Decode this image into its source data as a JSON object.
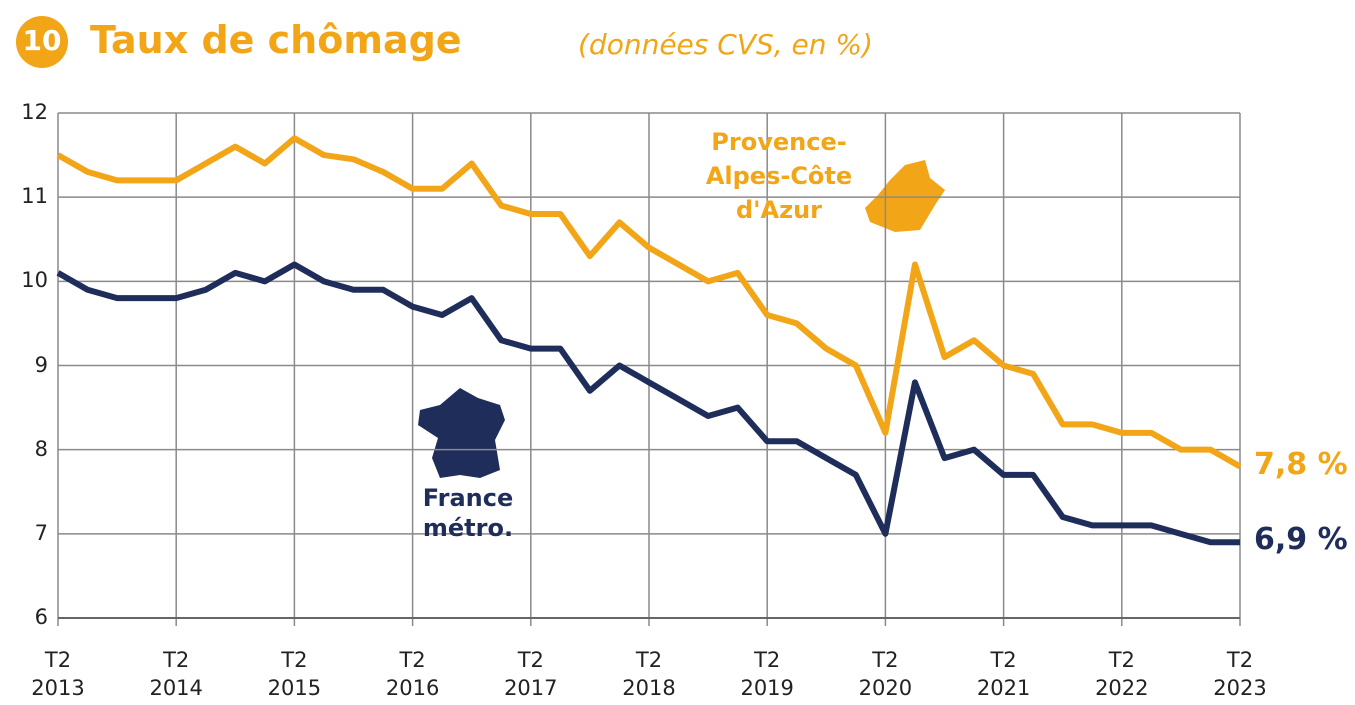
{
  "chart_data": {
    "type": "line",
    "badge": "10",
    "title": "Taux de chômage",
    "subtitle": "(données CVS, en %)",
    "categories": [
      "T2 2013",
      null,
      null,
      null,
      "T2 2014",
      null,
      null,
      null,
      "T2 2015",
      null,
      null,
      null,
      "T2 2016",
      null,
      null,
      null,
      "T2 2017",
      null,
      null,
      null,
      "T2 2018",
      null,
      null,
      null,
      "T2 2019",
      null,
      null,
      null,
      "T2 2020",
      null,
      null,
      null,
      "T2 2021",
      null,
      null,
      null,
      "T2 2022",
      null,
      null,
      null,
      "T2 2023"
    ],
    "series": [
      {
        "name": "Provence-Alpes-Côte d'Azur",
        "color": "#f2a516",
        "values": [
          11.5,
          11.3,
          11.2,
          11.2,
          11.2,
          11.4,
          11.6,
          11.4,
          11.7,
          11.5,
          11.45,
          11.3,
          11.1,
          11.1,
          11.4,
          10.9,
          10.8,
          10.8,
          10.3,
          10.7,
          10.4,
          10.2,
          10.0,
          10.1,
          9.6,
          9.5,
          9.2,
          9.0,
          8.2,
          10.2,
          9.1,
          9.3,
          9.0,
          8.9,
          8.3,
          8.3,
          8.2,
          8.2,
          8.0,
          8.0,
          7.8
        ],
        "value_labels": [
          null,
          null,
          null,
          null,
          null,
          null,
          null,
          null,
          null,
          null,
          null,
          null,
          null,
          null,
          null,
          null,
          null,
          null,
          null,
          null,
          null,
          null,
          null,
          null,
          null,
          null,
          null,
          null,
          null,
          null,
          null,
          null,
          null,
          null,
          null,
          null,
          null,
          null,
          null,
          null,
          "7,8 %"
        ]
      },
      {
        "name": "France métro.",
        "color": "#1f2d5a",
        "values": [
          10.1,
          9.9,
          9.8,
          9.8,
          9.8,
          9.9,
          10.1,
          10.0,
          10.2,
          10.0,
          9.9,
          9.9,
          9.7,
          9.6,
          9.8,
          9.3,
          9.2,
          9.2,
          8.7,
          9.0,
          8.8,
          8.6,
          8.4,
          8.5,
          8.1,
          8.1,
          7.9,
          7.7,
          7.0,
          8.8,
          7.9,
          8.0,
          7.7,
          7.7,
          7.2,
          7.1,
          7.1,
          7.1,
          7.0,
          6.9,
          6.9
        ],
        "value_labels": [
          null,
          null,
          null,
          null,
          null,
          null,
          null,
          null,
          null,
          null,
          null,
          null,
          null,
          null,
          null,
          null,
          null,
          null,
          null,
          null,
          null,
          null,
          null,
          null,
          null,
          null,
          null,
          null,
          null,
          null,
          null,
          null,
          null,
          null,
          null,
          null,
          null,
          null,
          null,
          null,
          "6,9 %"
        ]
      }
    ],
    "ylim": [
      6,
      12
    ],
    "yticks": [
      6,
      7,
      8,
      9,
      10,
      11,
      12
    ],
    "grid": true
  }
}
